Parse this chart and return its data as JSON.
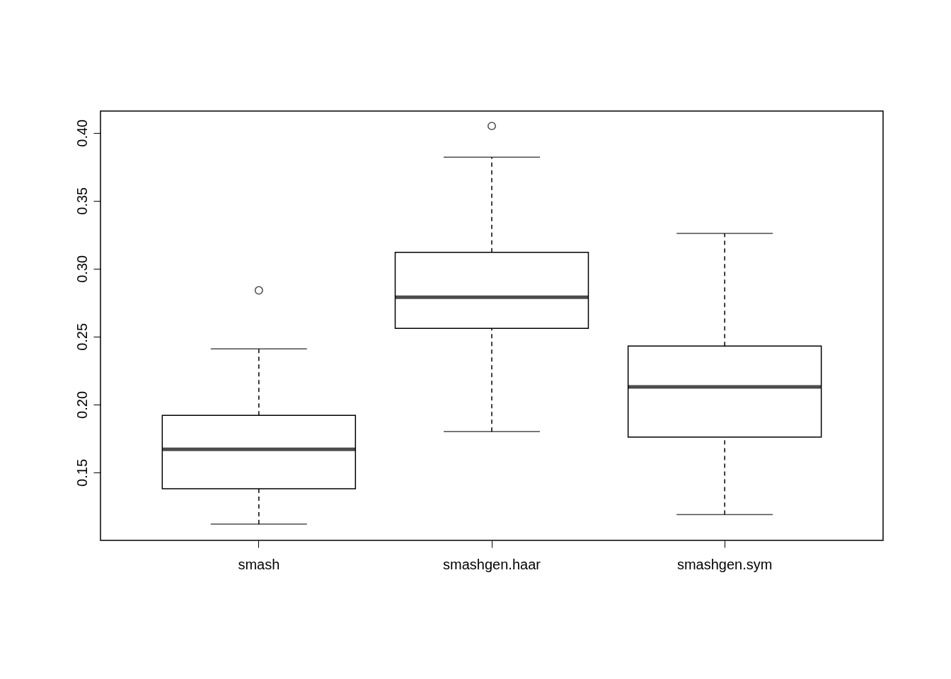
{
  "chart_data": {
    "type": "box",
    "categories": [
      "smash",
      "smashgen.haar",
      "smashgen.sym"
    ],
    "boxes": [
      {
        "low": 0.112,
        "q1": 0.138,
        "median": 0.167,
        "q3": 0.192,
        "high": 0.241,
        "outliers": [
          0.284
        ]
      },
      {
        "low": 0.18,
        "q1": 0.256,
        "median": 0.279,
        "q3": 0.312,
        "high": 0.382,
        "outliers": [
          0.405
        ]
      },
      {
        "low": 0.119,
        "q1": 0.176,
        "median": 0.213,
        "q3": 0.243,
        "high": 0.326
      }
    ],
    "ylim": [
      0.1,
      0.416
    ],
    "yticks": [
      {
        "value": 0.15,
        "label": "0.15"
      },
      {
        "value": 0.2,
        "label": "0.20"
      },
      {
        "value": 0.25,
        "label": "0.25"
      },
      {
        "value": 0.3,
        "label": "0.30"
      },
      {
        "value": 0.35,
        "label": "0.35"
      },
      {
        "value": 0.4,
        "label": "0.40"
      }
    ],
    "marker": "circle"
  }
}
